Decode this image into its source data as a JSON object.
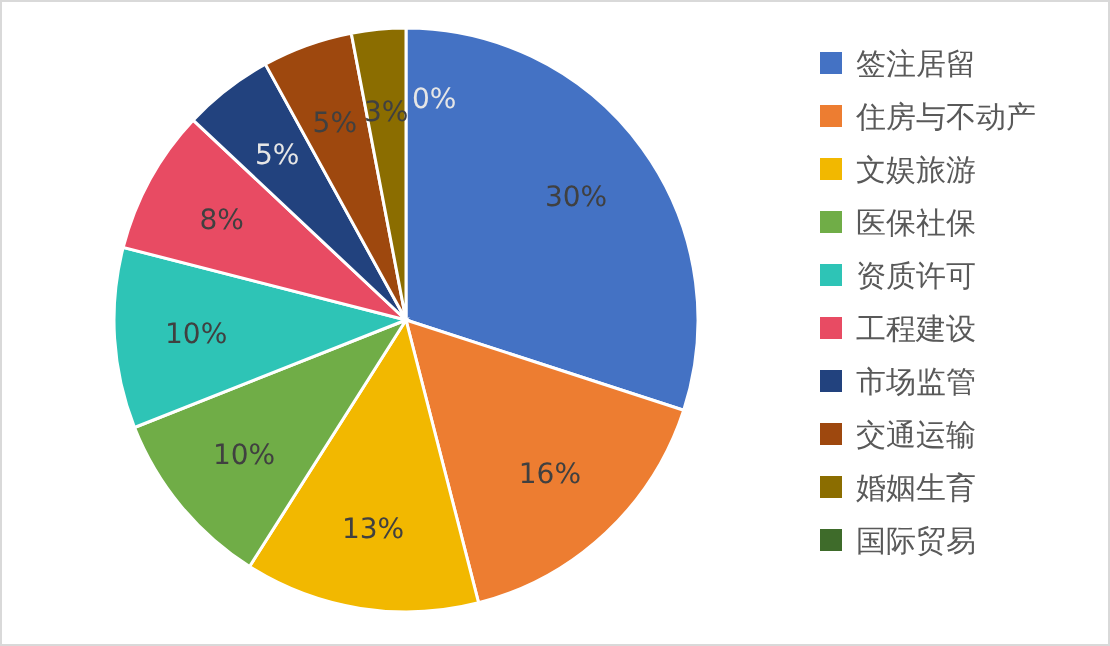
{
  "chart_data": {
    "type": "pie",
    "categories": [
      "签注居留",
      "住房与不动产",
      "文娱旅游",
      "医保社保",
      "资质许可",
      "工程建设",
      "市场监管",
      "交通运输",
      "婚姻生育",
      "国际贸易"
    ],
    "values": [
      30,
      16,
      13,
      10,
      10,
      8,
      5,
      5,
      3,
      0
    ],
    "colors": [
      "#4472c4",
      "#ed7d31",
      "#f2b800",
      "#70ad47",
      "#2ec4b6",
      "#e84b63",
      "#22427e",
      "#9e480e",
      "#8b6d00",
      "#3e6b2a"
    ],
    "value_labels": [
      "30%",
      "16%",
      "13%",
      "10%",
      "10%",
      "8%",
      "5%",
      "5%",
      "3%",
      "0%"
    ],
    "legend": "right"
  }
}
